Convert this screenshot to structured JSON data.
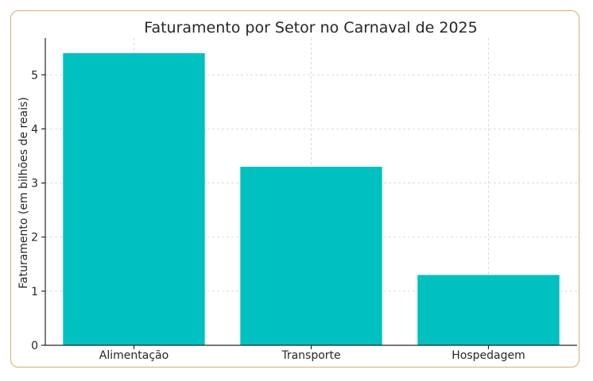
{
  "chart_data": {
    "type": "bar",
    "title": "Faturamento por Setor no Carnaval de 2025",
    "xlabel": "",
    "ylabel": "Faturamento (em bilhões de reais)",
    "categories": [
      "Alimentação",
      "Transporte",
      "Hospedagem"
    ],
    "values": [
      5.4,
      3.3,
      1.3
    ],
    "ylim": [
      0,
      5.6
    ],
    "yticks": [
      0,
      1,
      2,
      3,
      4,
      5
    ],
    "grid": true,
    "bar_color": "#00c0c0"
  }
}
